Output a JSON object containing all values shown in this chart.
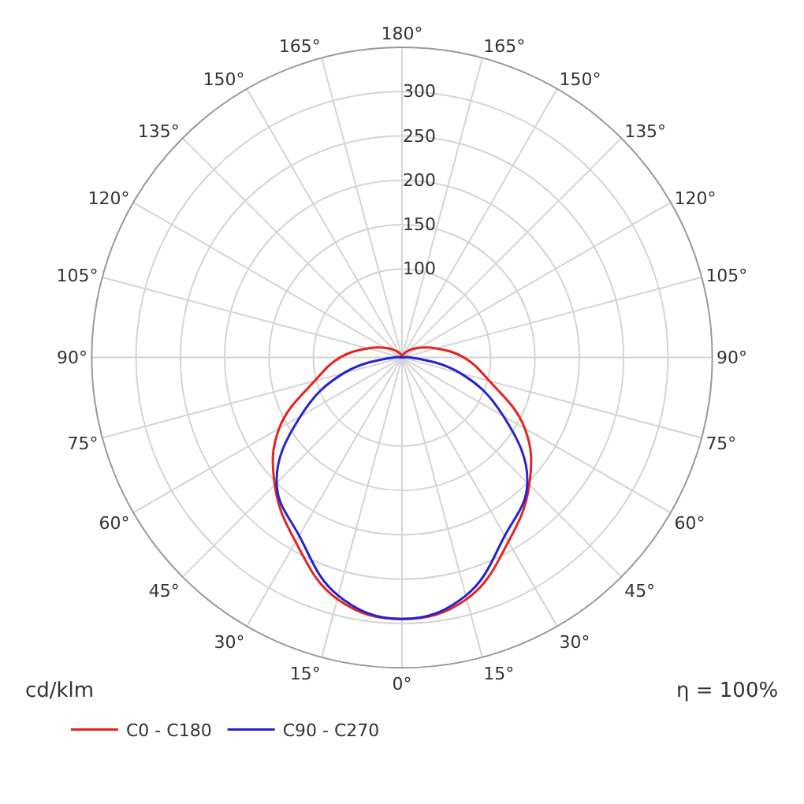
{
  "chart_data": {
    "type": "radar",
    "categories": [
      "180°",
      "165°",
      "150°",
      "135°",
      "120°",
      "105°",
      "90°",
      "75°",
      "60°",
      "45°",
      "30°",
      "15°",
      "0°",
      "15°",
      "30°",
      "45°",
      "60°",
      "75°",
      "90°",
      "105°",
      "120°",
      "135°",
      "150°",
      "165°"
    ],
    "series": [
      {
        "name": "C0 - C180",
        "color": "#e52420",
        "values": [
          0,
          3,
          6,
          12,
          22,
          40,
          70,
          102,
          160,
          203,
          240,
          282,
          295,
          282,
          240,
          203,
          160,
          102,
          70,
          40,
          22,
          12,
          6,
          3
        ]
      },
      {
        "name": "C90 - C270",
        "color": "#2424d0",
        "values": [
          0,
          0,
          0,
          0,
          0,
          0,
          10,
          68,
          132,
          200,
          232,
          278,
          295,
          278,
          232,
          200,
          132,
          68,
          10,
          0,
          0,
          0,
          0,
          0
        ]
      }
    ],
    "ylim": [
      0,
      350
    ],
    "yticks": [
      100,
      150,
      200,
      250,
      300
    ],
    "ylabel": "cd/klm",
    "annotations": [
      "η = 100%"
    ],
    "grid": true,
    "legend": "bottom left",
    "marker": "none",
    "line_style": "solid"
  }
}
